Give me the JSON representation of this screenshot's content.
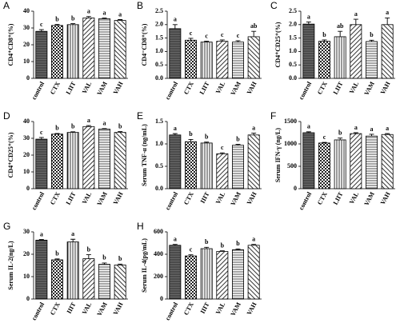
{
  "chart_data": [
    {
      "type": "bar",
      "label": "A",
      "y_label": "CD4⁺CD8⁺(%)",
      "categories": [
        "control",
        "CTX",
        "LIIT",
        "VAL",
        "VAM",
        "VAH"
      ],
      "values": [
        28,
        31.5,
        32,
        36,
        35.5,
        34.5
      ],
      "errors": [
        1,
        0.6,
        0.6,
        0.8,
        0.4,
        0.5
      ],
      "letters": [
        "c",
        "b",
        "b",
        "a",
        "a",
        "a"
      ],
      "ylim": [
        0,
        40
      ],
      "yticks": [
        0,
        10,
        20,
        30,
        40
      ]
    },
    {
      "type": "bar",
      "label": "B",
      "y_label": "CD4⁻CD8⁺(%)",
      "categories": [
        "control",
        "CTX",
        "LIIT",
        "VAL",
        "VAM",
        "VAH"
      ],
      "values": [
        1.85,
        1.42,
        1.35,
        1.38,
        1.35,
        1.55
      ],
      "errors": [
        0.15,
        0.07,
        0.03,
        0.05,
        0.05,
        0.2
      ],
      "letters": [
        "a",
        "c",
        "c",
        "c",
        "c",
        "ab"
      ],
      "ylim": [
        0,
        2.5
      ],
      "yticks": [
        {
          "value": 0,
          "label": "0.0"
        },
        0.5,
        {
          "value": 1,
          "label": "1.0"
        },
        1.5,
        {
          "value": 2,
          "label": "2.0"
        },
        2.5
      ]
    },
    {
      "type": "bar",
      "label": "C",
      "y_label": "CD4⁺CD25⁺(%)",
      "categories": [
        "control",
        "CTX",
        "LIIT",
        "VAL",
        "VAM",
        "VAH"
      ],
      "values": [
        2.02,
        1.38,
        1.55,
        2.0,
        1.37,
        2.0
      ],
      "errors": [
        0.08,
        0.05,
        0.2,
        0.2,
        0.05,
        0.25
      ],
      "letters": [
        "a",
        "b",
        "ab",
        "a",
        "b",
        "a"
      ],
      "ylim": [
        0,
        2.5
      ],
      "yticks": [
        {
          "value": 0,
          "label": "0.0"
        },
        0.5,
        {
          "value": 1,
          "label": "1.0"
        },
        1.5,
        {
          "value": 2,
          "label": "2.0"
        },
        2.5
      ]
    },
    {
      "type": "bar",
      "label": "D",
      "y_label": "CD4⁺CD25⁺(%)",
      "categories": [
        "control",
        "CTX",
        "LIIT",
        "VAL",
        "VAM",
        "VAH"
      ],
      "values": [
        29.5,
        32.5,
        33.5,
        37,
        35.5,
        33.5
      ],
      "errors": [
        1,
        0.4,
        0.4,
        0.6,
        0.3,
        0.5
      ],
      "letters": [
        "c",
        "b",
        "b",
        "a",
        "a",
        "b"
      ],
      "ylim": [
        0,
        40
      ],
      "yticks": [
        0,
        10,
        20,
        30,
        40
      ]
    },
    {
      "type": "bar",
      "label": "E",
      "y_label": "Serum TNF-α (ng/mL)",
      "categories": [
        "control",
        "CTX",
        "IIIT",
        "VAL",
        "VAM",
        "VAH"
      ],
      "values": [
        1.2,
        1.05,
        1.02,
        0.78,
        0.97,
        1.2
      ],
      "errors": [
        0.03,
        0.05,
        0.02,
        0.02,
        0.02,
        0.04
      ],
      "letters": [
        "a",
        "b",
        "b",
        "c",
        "b",
        "a"
      ],
      "ylim": [
        0,
        1.5
      ],
      "yticks": [
        {
          "value": 0,
          "label": "0.0"
        },
        0.5,
        {
          "value": 1,
          "label": "1.0"
        },
        1.5
      ]
    },
    {
      "type": "bar",
      "label": "F",
      "y_label": "Serum IFN-γ (ng/L)",
      "categories": [
        "control",
        "CTX",
        "LIIT",
        "VAL",
        "VAM",
        "VAH"
      ],
      "values": [
        1250,
        1020,
        1090,
        1230,
        1175,
        1210
      ],
      "errors": [
        20,
        15,
        40,
        20,
        40,
        20
      ],
      "letters": [
        "a",
        "c",
        "b",
        "a",
        "a",
        "a"
      ],
      "ylim": [
        0,
        1500
      ],
      "yticks": [
        0,
        500,
        1000,
        1500
      ]
    },
    {
      "type": "bar",
      "label": "G",
      "y_label": "Serum IL-2(ng/L)",
      "categories": [
        "control",
        "CTX",
        "IIIT",
        "VAL",
        "VAM",
        "VAH"
      ],
      "values": [
        26.3,
        17.5,
        25.5,
        18,
        15.5,
        15.2
      ],
      "errors": [
        0.3,
        0.4,
        1.2,
        1.8,
        0.6,
        0.4
      ],
      "letters": [
        "a",
        "b",
        "a",
        "b",
        "b",
        "b"
      ],
      "ylim": [
        0,
        30
      ],
      "yticks": [
        0,
        10,
        20,
        30
      ]
    },
    {
      "type": "bar",
      "label": "H",
      "y_label": "Serum IL-4(pg/mL)",
      "categories": [
        "control",
        "CTX",
        "IIIT",
        "VAL",
        "VAM",
        "VAH"
      ],
      "values": [
        480,
        385,
        450,
        425,
        440,
        480
      ],
      "errors": [
        8,
        10,
        12,
        6,
        8,
        8
      ],
      "letters": [
        "a",
        "c",
        "b",
        "b",
        "b",
        "a"
      ],
      "ylim": [
        0,
        600
      ],
      "yticks": [
        0,
        200,
        400,
        600
      ]
    }
  ]
}
